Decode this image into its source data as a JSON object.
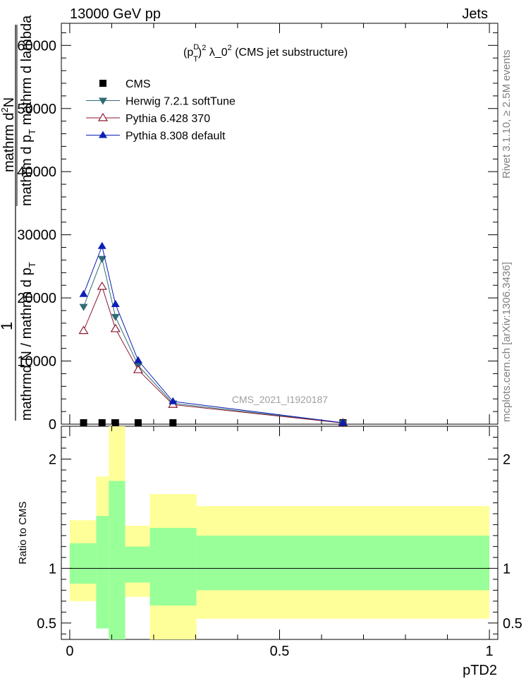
{
  "header": {
    "left": "13000 GeV pp",
    "right": "Jets"
  },
  "side_labels": {
    "rivet": "Rivet 3.1.10, ≥ 2.5M events",
    "mcplots": "mcplots.cern.ch [arXiv:1306.3436]"
  },
  "chart_data": [
    {
      "type": "line",
      "title_parts": {
        "p": "(p",
        "sup_d": "D",
        "sub_t": "T",
        "close": ")",
        "sq": "2",
        "lambda": " λ_0",
        "sq2": "2",
        "rest": " (CMS jet substructure)"
      },
      "watermark": "CMS_2021_I1920187",
      "ylabel_parts": {
        "one": "1",
        "den1": "mathrmd N / mathrm d p",
        "den1_sub": "T",
        "num1": "mathrm d",
        "num1_sup": "2",
        "num1_rest": "N",
        "num2": "mathrm d p",
        "num2_sub": "T",
        "num2_rest": " mathrm d lambda"
      },
      "xlim": [
        -0.02,
        1.02
      ],
      "ylim": [
        0,
        63500
      ],
      "yticks": [
        0,
        10000,
        20000,
        30000,
        40000,
        50000,
        60000
      ],
      "yticklabels": [
        "0",
        "10000",
        "20000",
        "30000",
        "40000",
        "50000",
        "60000"
      ],
      "x": [
        0.033,
        0.077,
        0.109,
        0.163,
        0.246,
        0.651
      ],
      "series": [
        {
          "name": "CMS",
          "marker": "square",
          "color": "#000000",
          "values": [
            0,
            0,
            0,
            0,
            0,
            0
          ]
        },
        {
          "name": "Herwig 7.2.1 softTune",
          "marker": "triangle-down",
          "color": "#2f6d73",
          "values": [
            18600,
            26200,
            17000,
            9300,
            3300,
            200
          ]
        },
        {
          "name": "Pythia 6.428 370",
          "marker": "triangle-open",
          "color": "#8b1a2e",
          "values": [
            14800,
            21800,
            15100,
            8600,
            3100,
            180
          ]
        },
        {
          "name": "Pythia 8.308 default",
          "marker": "triangle-up",
          "color": "#0a1fb4",
          "values": [
            20600,
            28200,
            19000,
            10100,
            3600,
            220
          ]
        }
      ],
      "legend": "top-left"
    },
    {
      "type": "area",
      "ylabel": "Ratio to CMS",
      "xlabel": "pTD2",
      "xlim": [
        -0.02,
        1.02
      ],
      "ylim": [
        0.35,
        2.3
      ],
      "yticks": [
        0.5,
        1,
        2
      ],
      "yticklabels": [
        "0.5",
        "1",
        "2"
      ],
      "xticks": [
        0,
        0.5,
        1
      ],
      "xticklabels": [
        "0",
        "0.5",
        "1"
      ],
      "colors": {
        "inner": "#99ff99",
        "outer": "#ffff99"
      },
      "bins": [
        {
          "x0": 0.0,
          "x1": 0.063,
          "inner": [
            0.86,
            1.23
          ],
          "outer": [
            0.7,
            1.44
          ]
        },
        {
          "x0": 0.063,
          "x1": 0.093,
          "inner": [
            0.45,
            1.48
          ],
          "outer": [
            0.63,
            1.84
          ]
        },
        {
          "x0": 0.093,
          "x1": 0.132,
          "inner": [
            0.35,
            1.8
          ],
          "outer": [
            0.35,
            2.3
          ]
        },
        {
          "x0": 0.132,
          "x1": 0.191,
          "inner": [
            0.87,
            1.2
          ],
          "outer": [
            0.74,
            1.39
          ]
        },
        {
          "x0": 0.191,
          "x1": 0.302,
          "inner": [
            0.66,
            1.37
          ],
          "outer": [
            0.35,
            1.68
          ]
        },
        {
          "x0": 0.302,
          "x1": 1.0,
          "inner": [
            0.8,
            1.3
          ],
          "outer": [
            0.54,
            1.57
          ]
        }
      ]
    }
  ]
}
